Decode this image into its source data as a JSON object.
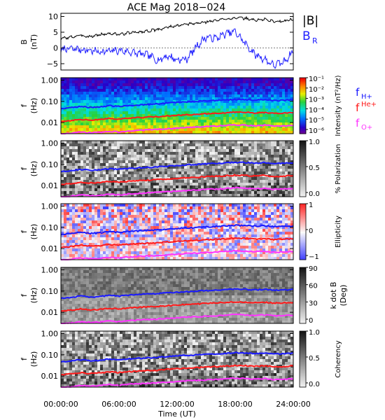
{
  "title": "ACE Mag 2018−024",
  "time_axis": {
    "label": "Time (UT)",
    "ticks": [
      "00:00:00",
      "06:00:00",
      "12:00:00",
      "18:00:00",
      "24:00:00"
    ]
  },
  "panels": [
    {
      "id": "b",
      "ylabel_lines": [
        "B",
        "(nT)"
      ],
      "ticks": [
        "10",
        "5",
        "0",
        "−5"
      ],
      "legend": [
        {
          "text": "|B|",
          "color": "#000000"
        },
        {
          "text": "B",
          "sub": "R",
          "color": "#2020ff"
        }
      ]
    },
    {
      "id": "intensity",
      "ylabel_lines": [
        "f",
        "(Hz)"
      ],
      "ticks": [
        "1.00",
        "0.10",
        "0.01"
      ],
      "cbar_label": "Intensity (nT²/Hz)",
      "cbar_ticks": [
        "10⁻¹",
        "10⁻²",
        "10⁻³",
        "10⁻⁴",
        "10⁻⁵",
        "10⁻⁶"
      ],
      "gyro_legend": [
        {
          "base": "f",
          "sub": "H+",
          "color": "#1a1aff"
        },
        {
          "base": "f",
          "sup": "He+",
          "color": "#ff1a1a"
        },
        {
          "base": "f",
          "sub": "O+",
          "color": "#ff33ff"
        }
      ]
    },
    {
      "id": "polarization",
      "ylabel_lines": [
        "f",
        "(Hz)"
      ],
      "ticks": [
        "1.00",
        "0.10",
        "0.01"
      ],
      "cbar_label": "% Polarization",
      "cbar_ticks": [
        "1.0",
        "0.5",
        "0.0"
      ]
    },
    {
      "id": "ellipticity",
      "ylabel_lines": [
        "f",
        "(Hz)"
      ],
      "ticks": [
        "1.00",
        "0.10",
        "0.01"
      ],
      "cbar_label": "Ellipticity",
      "cbar_ticks": [
        "1",
        "0",
        "−1"
      ]
    },
    {
      "id": "kdotb",
      "ylabel_lines": [
        "f",
        "(Hz)"
      ],
      "ticks": [
        "1.00",
        "0.10",
        "0.01"
      ],
      "cbar_label_lines": [
        "k dot B",
        "(Deg)"
      ],
      "cbar_ticks": [
        "90",
        "60",
        "30",
        "0"
      ]
    },
    {
      "id": "coherency",
      "ylabel_lines": [
        "f",
        "(Hz)"
      ],
      "ticks": [
        "1.00",
        "0.10",
        "0.01"
      ],
      "cbar_label": "Coherency",
      "cbar_ticks": [
        "1.0",
        "0.5",
        "0.0"
      ]
    }
  ],
  "chart_data": [
    {
      "type": "line",
      "x_label": "Time (UT)",
      "x_unit": "hours",
      "ylabel": "B (nT)",
      "ylim": [
        -7,
        11
      ],
      "x": [
        0,
        1,
        2,
        3,
        4,
        5,
        6,
        7,
        8,
        9,
        10,
        11,
        12,
        13,
        14,
        15,
        16,
        17,
        18,
        19,
        20,
        21,
        22,
        23,
        24
      ],
      "series": [
        {
          "name": "|B|",
          "color": "#000000",
          "values": [
            3.0,
            3.4,
            4.0,
            3.6,
            4.2,
            4.6,
            4.3,
            4.8,
            5.0,
            5.4,
            5.8,
            6.6,
            7.0,
            7.5,
            7.8,
            8.3,
            8.7,
            9.2,
            9.6,
            9.4,
            8.8,
            9.1,
            8.4,
            8.6,
            9.0
          ]
        },
        {
          "name": "B_R",
          "color": "#2020ff",
          "values": [
            -0.5,
            -0.2,
            -0.5,
            -0.8,
            -1.2,
            -1.0,
            -0.8,
            -1.2,
            -1.8,
            -2.2,
            -4.0,
            -2.5,
            -3.8,
            -3.5,
            0.5,
            3.5,
            3.0,
            4.5,
            5.2,
            1.5,
            -2.0,
            -3.5,
            -5.5,
            -4.5,
            -1.0
          ]
        }
      ]
    },
    {
      "type": "heatmap",
      "ylabel": "f (Hz)",
      "y_scale": "log",
      "ylim": [
        0.003,
        1.3
      ],
      "x": [
        0,
        1,
        2,
        3,
        4,
        5,
        6,
        7,
        8,
        9,
        10,
        11,
        12,
        13,
        14,
        15,
        16,
        17,
        18,
        19,
        20,
        21,
        22,
        23,
        24
      ],
      "colorbar": {
        "label": "Intensity (nT²/Hz)",
        "scale": "log",
        "range": [
          1e-06,
          0.3
        ]
      },
      "series": [
        {
          "name": "f_H+",
          "color": "#1a1aff",
          "values": [
            0.045,
            0.05,
            0.058,
            0.052,
            0.055,
            0.062,
            0.058,
            0.064,
            0.068,
            0.072,
            0.076,
            0.082,
            0.088,
            0.094,
            0.098,
            0.106,
            0.11,
            0.116,
            0.124,
            0.122,
            0.114,
            0.12,
            0.108,
            0.112,
            0.118
          ]
        },
        {
          "name": "f_He+",
          "color": "#ff1a1a",
          "values": [
            0.0113,
            0.0125,
            0.0145,
            0.013,
            0.0138,
            0.0155,
            0.0145,
            0.016,
            0.017,
            0.018,
            0.019,
            0.0205,
            0.022,
            0.0235,
            0.0245,
            0.0265,
            0.0275,
            0.029,
            0.031,
            0.0305,
            0.0285,
            0.03,
            0.027,
            0.028,
            0.0295
          ]
        },
        {
          "name": "f_O+",
          "color": "#ff33ff",
          "values": [
            0.0028,
            0.0031,
            0.0036,
            0.0033,
            0.0035,
            0.0039,
            0.0036,
            0.004,
            0.0043,
            0.0045,
            0.0048,
            0.0051,
            0.0055,
            0.0059,
            0.0061,
            0.0066,
            0.0069,
            0.0073,
            0.0078,
            0.0076,
            0.0071,
            0.0075,
            0.0068,
            0.007,
            0.0074
          ]
        }
      ]
    },
    {
      "type": "heatmap",
      "ylabel": "f (Hz)",
      "y_scale": "log",
      "colorbar": {
        "label": "% Polarization",
        "range": [
          0.0,
          1.0
        ]
      }
    },
    {
      "type": "heatmap",
      "ylabel": "f (Hz)",
      "y_scale": "log",
      "colorbar": {
        "label": "Ellipticity",
        "range": [
          -1,
          1
        ]
      }
    },
    {
      "type": "heatmap",
      "ylabel": "f (Hz)",
      "y_scale": "log",
      "colorbar": {
        "label": "k dot B (Deg)",
        "range": [
          0,
          90
        ]
      }
    },
    {
      "type": "heatmap",
      "ylabel": "f (Hz)",
      "y_scale": "log",
      "colorbar": {
        "label": "Coherency",
        "range": [
          0.0,
          1.0
        ]
      }
    }
  ]
}
